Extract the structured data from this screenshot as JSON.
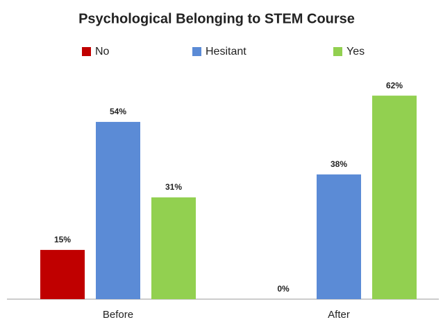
{
  "chart_data": {
    "type": "bar",
    "title": "Psychological Belonging to STEM Course",
    "categories": [
      "Before",
      "After"
    ],
    "series": [
      {
        "name": "No",
        "color": "#c00000",
        "values": [
          15,
          0
        ],
        "value_labels": [
          "15%",
          "0%"
        ]
      },
      {
        "name": "Hesitant",
        "color": "#5b8bd6",
        "values": [
          54,
          38
        ],
        "value_labels": [
          "54%",
          "38%"
        ]
      },
      {
        "name": "Yes",
        "color": "#92d050",
        "values": [
          31,
          62
        ],
        "value_labels": [
          "31%",
          "62%"
        ]
      }
    ],
    "legend": "top"
  }
}
